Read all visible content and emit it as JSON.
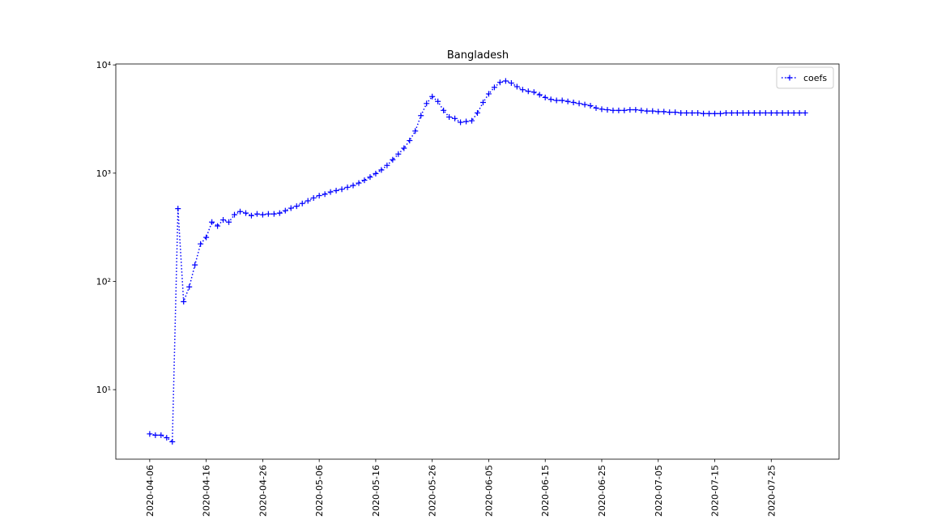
{
  "chart_data": {
    "type": "line",
    "title": "Bangladesh",
    "x": [
      "2020-04-06",
      "2020-04-07",
      "2020-04-08",
      "2020-04-09",
      "2020-04-10",
      "2020-04-11",
      "2020-04-12",
      "2020-04-13",
      "2020-04-14",
      "2020-04-15",
      "2020-04-16",
      "2020-04-17",
      "2020-04-18",
      "2020-04-19",
      "2020-04-20",
      "2020-04-21",
      "2020-04-22",
      "2020-04-23",
      "2020-04-24",
      "2020-04-25",
      "2020-04-26",
      "2020-04-27",
      "2020-04-28",
      "2020-04-29",
      "2020-04-30",
      "2020-05-01",
      "2020-05-02",
      "2020-05-03",
      "2020-05-04",
      "2020-05-05",
      "2020-05-06",
      "2020-05-07",
      "2020-05-08",
      "2020-05-09",
      "2020-05-10",
      "2020-05-11",
      "2020-05-12",
      "2020-05-13",
      "2020-05-14",
      "2020-05-15",
      "2020-05-16",
      "2020-05-17",
      "2020-05-18",
      "2020-05-19",
      "2020-05-20",
      "2020-05-21",
      "2020-05-22",
      "2020-05-23",
      "2020-05-24",
      "2020-05-25",
      "2020-05-26",
      "2020-05-27",
      "2020-05-28",
      "2020-05-29",
      "2020-05-30",
      "2020-05-31",
      "2020-06-01",
      "2020-06-02",
      "2020-06-03",
      "2020-06-04",
      "2020-06-05",
      "2020-06-06",
      "2020-06-07",
      "2020-06-08",
      "2020-06-09",
      "2020-06-10",
      "2020-06-11",
      "2020-06-12",
      "2020-06-13",
      "2020-06-14",
      "2020-06-15",
      "2020-06-16",
      "2020-06-17",
      "2020-06-18",
      "2020-06-19",
      "2020-06-20",
      "2020-06-21",
      "2020-06-22",
      "2020-06-23",
      "2020-06-24",
      "2020-06-25",
      "2020-06-26",
      "2020-06-27",
      "2020-06-28",
      "2020-06-29",
      "2020-06-30",
      "2020-07-01",
      "2020-07-02",
      "2020-07-03",
      "2020-07-04",
      "2020-07-05",
      "2020-07-06",
      "2020-07-07",
      "2020-07-08",
      "2020-07-09",
      "2020-07-10",
      "2020-07-11",
      "2020-07-12",
      "2020-07-13",
      "2020-07-14",
      "2020-07-15",
      "2020-07-16",
      "2020-07-17",
      "2020-07-18",
      "2020-07-19",
      "2020-07-20",
      "2020-07-21",
      "2020-07-22",
      "2020-07-23",
      "2020-07-24",
      "2020-07-25",
      "2020-07-26",
      "2020-07-27",
      "2020-07-28",
      "2020-07-29",
      "2020-07-30",
      "2020-07-31"
    ],
    "series": [
      {
        "name": "coefs",
        "color": "#0000ff",
        "linestyle": "dotted",
        "marker": "+",
        "values": [
          3.9,
          3.8,
          3.8,
          3.6,
          3.3,
          470,
          65,
          89,
          142,
          222,
          255,
          353,
          325,
          370,
          353,
          413,
          442,
          428,
          405,
          420,
          413,
          420,
          420,
          428,
          450,
          475,
          495,
          525,
          555,
          590,
          620,
          640,
          670,
          690,
          710,
          740,
          770,
          810,
          860,
          920,
          990,
          1070,
          1180,
          1330,
          1500,
          1700,
          2000,
          2450,
          3400,
          4400,
          5100,
          4600,
          3800,
          3300,
          3200,
          2950,
          3000,
          3050,
          3600,
          4500,
          5400,
          6200,
          6900,
          7100,
          6800,
          6300,
          5900,
          5700,
          5600,
          5300,
          5000,
          4800,
          4700,
          4700,
          4600,
          4500,
          4400,
          4300,
          4200,
          4000,
          3900,
          3850,
          3800,
          3800,
          3800,
          3850,
          3850,
          3800,
          3750,
          3750,
          3700,
          3700,
          3650,
          3650,
          3600,
          3600,
          3600,
          3600,
          3550,
          3550,
          3550,
          3550,
          3600,
          3600,
          3600,
          3600,
          3600,
          3600,
          3600,
          3600,
          3600,
          3600,
          3600,
          3600,
          3600,
          3600,
          3600
        ]
      }
    ],
    "xlim": [
      "2020-03-31",
      "2020-08-06"
    ],
    "xticks": [
      "2020-04-06",
      "2020-04-16",
      "2020-04-26",
      "2020-05-06",
      "2020-05-16",
      "2020-05-26",
      "2020-06-05",
      "2020-06-15",
      "2020-06-25",
      "2020-07-05",
      "2020-07-15",
      "2020-07-25"
    ],
    "ylim": [
      2.28,
      10200
    ],
    "yscale": "log",
    "yticks": [
      {
        "value": 10,
        "label": "10¹"
      },
      {
        "value": 100,
        "label": "10²"
      },
      {
        "value": 1000,
        "label": "10³"
      },
      {
        "value": 10000,
        "label": "10⁴"
      }
    ],
    "legend": "upper right"
  }
}
